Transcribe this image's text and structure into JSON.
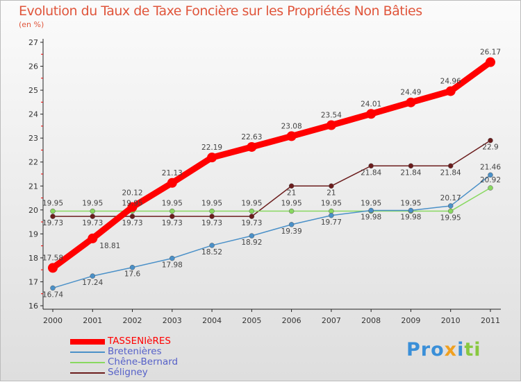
{
  "chart_data": {
    "type": "line",
    "title": "Evolution du Taux de Taxe Foncière sur les Propriétés Non Bâties",
    "ylabel": "(en %)",
    "ylim": [
      16,
      27
    ],
    "yticks": [
      16,
      17,
      18,
      19,
      20,
      21,
      22,
      23,
      24,
      25,
      26,
      27
    ],
    "x": [
      "2000",
      "2001",
      "2002",
      "2003",
      "2004",
      "2005",
      "2006",
      "2007",
      "2008",
      "2009",
      "2010",
      "2011"
    ],
    "series": [
      {
        "name": "TASSENIèRES",
        "color": "#ff0000",
        "values": [
          17.58,
          18.81,
          20.12,
          21.13,
          22.19,
          22.63,
          23.08,
          23.54,
          24.01,
          24.49,
          24.96,
          26.17
        ]
      },
      {
        "name": "Bretenières",
        "color": "#4a90c8",
        "values": [
          16.74,
          17.24,
          17.6,
          17.98,
          18.52,
          18.92,
          19.39,
          19.77,
          19.98,
          19.98,
          20.17,
          21.46
        ]
      },
      {
        "name": "Chêne-Bernard",
        "color": "#88d860",
        "values": [
          19.95,
          19.95,
          19.95,
          19.95,
          19.95,
          19.95,
          19.95,
          19.95,
          19.95,
          19.95,
          19.95,
          20.92
        ]
      },
      {
        "name": "Séligney",
        "color": "#6b1c1c",
        "values": [
          19.73,
          19.73,
          19.73,
          19.73,
          19.73,
          19.73,
          21,
          21,
          21.84,
          21.84,
          21.84,
          22.9
        ]
      }
    ]
  },
  "logo": "Proxiti"
}
